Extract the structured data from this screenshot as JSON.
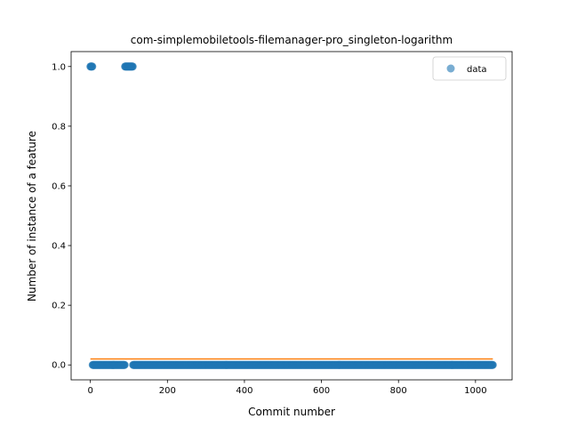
{
  "chart_data": {
    "type": "scatter",
    "title": "com-simplemobiletools-filemanager-pro_singleton-logarithm",
    "xlabel": "Commit number",
    "ylabel": "Number of instance of a feature",
    "xlim": [
      -50,
      1095
    ],
    "ylim": [
      -0.05,
      1.05
    ],
    "xticks": [
      0,
      200,
      400,
      600,
      800,
      1000
    ],
    "yticks": [
      0.0,
      0.2,
      0.4,
      0.6,
      0.8,
      1.0
    ],
    "xtick_labels": [
      "0",
      "200",
      "400",
      "600",
      "800",
      "1000"
    ],
    "ytick_labels": [
      "0.0",
      "0.2",
      "0.4",
      "0.6",
      "0.8",
      "1.0"
    ],
    "legend": {
      "position": "top-right",
      "entries": [
        "data"
      ]
    },
    "series": [
      {
        "name": "data",
        "kind": "scatter",
        "color": "#1f77b4",
        "ones_ranges": [
          [
            0,
            5
          ],
          [
            90,
            110
          ]
        ],
        "zeros_ranges": [
          [
            6,
            89
          ],
          [
            111,
            1045
          ]
        ]
      },
      {
        "kind": "line",
        "color": "#ff7f0e",
        "x": [
          0,
          1045
        ],
        "y": [
          0.02,
          0.02
        ]
      }
    ]
  }
}
